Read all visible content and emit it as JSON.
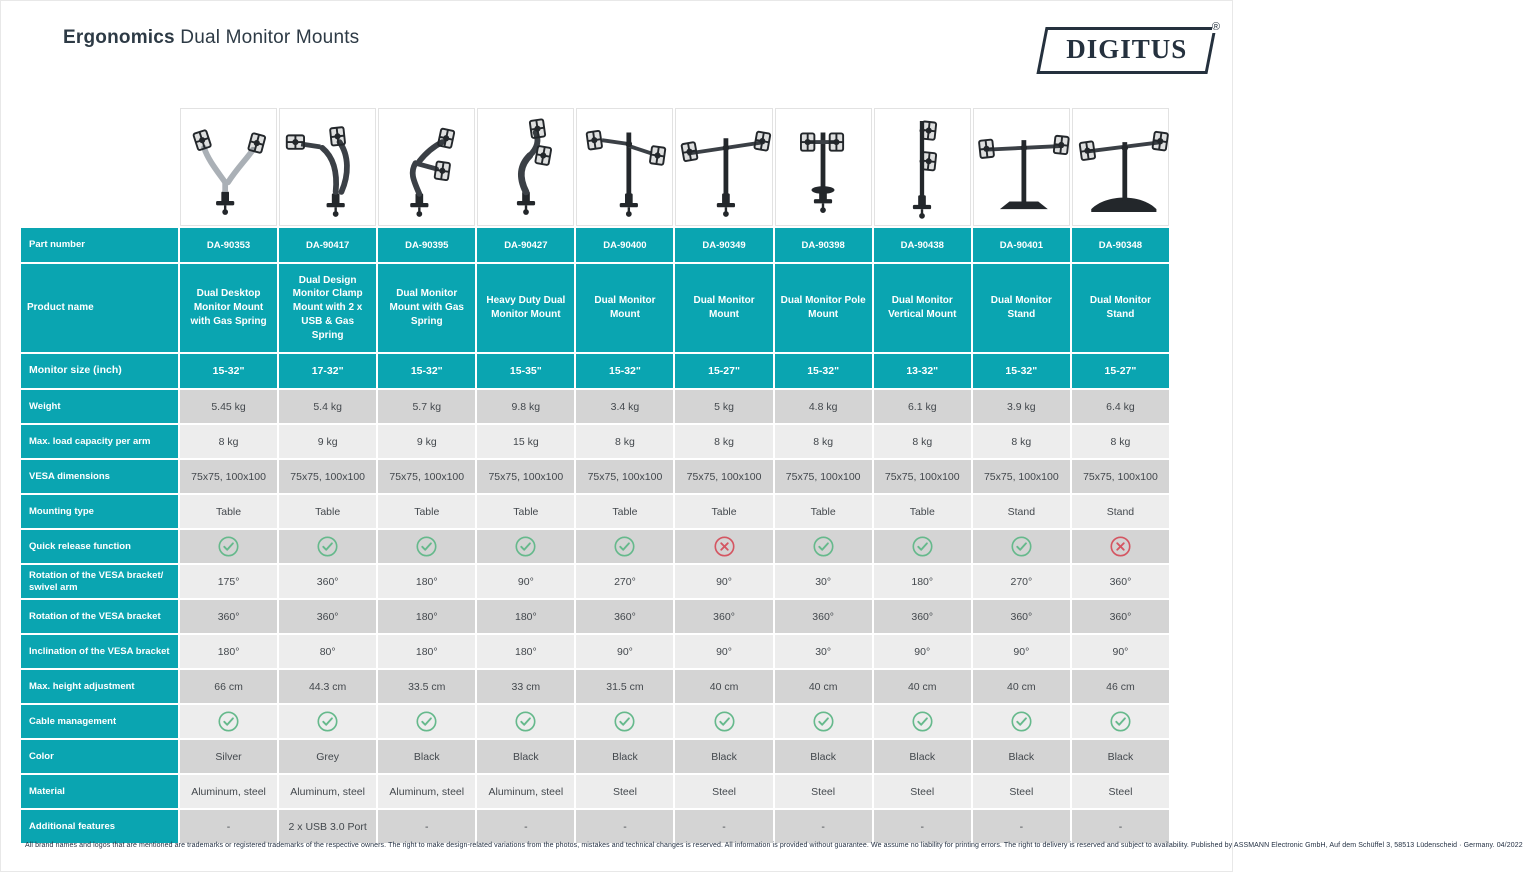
{
  "page": {
    "title_bold": "Ergonomics",
    "title_rest": " Dual Monitor Mounts",
    "brand": "DIGITUS",
    "brand_reg": "®",
    "footer": "All brand names and logos that are mentioned are trademarks or registered trademarks of the respective owners. The right to make design-related variations from the photos, mistakes and technical changes is reserved. All information is provided without guarantee. We assume no liability for printing errors. The right to delivery is reserved and subject to availability. Published by ASSMANN Electronic GmbH, Auf dem Schüffel 3, 58513 Lüdenscheid · Germany. 04/2022"
  },
  "colors": {
    "teal": "#0aa5b1",
    "row_dark": "#d4d4d4",
    "row_light": "#ededed",
    "check_green": "#66b98c",
    "cross_red": "#d45662",
    "ink": "#2d3a45"
  },
  "table": {
    "rows": [
      {
        "label": "Part number",
        "field": "part_number",
        "kind": "teal"
      },
      {
        "label": "Product name",
        "field": "product_name",
        "kind": "teal"
      },
      {
        "label": "Monitor size (inch)",
        "field": "monitor_size",
        "kind": "teal"
      },
      {
        "label": "Weight",
        "field": "weight",
        "kind": "text"
      },
      {
        "label": "Max. load capacity per arm",
        "field": "max_load",
        "kind": "text"
      },
      {
        "label": "VESA dimensions",
        "field": "vesa",
        "kind": "text"
      },
      {
        "label": "Mounting type",
        "field": "mounting",
        "kind": "text"
      },
      {
        "label": "Quick release function",
        "field": "quick_release",
        "kind": "icon"
      },
      {
        "label": "Rotation of the VESA bracket/ swivel arm",
        "field": "rotation_swivel",
        "kind": "text"
      },
      {
        "label": "Rotation of the VESA bracket",
        "field": "rotation_bracket",
        "kind": "text"
      },
      {
        "label": "Inclination of the VESA bracket",
        "field": "inclination",
        "kind": "text"
      },
      {
        "label": "Max. height adjustment",
        "field": "max_height",
        "kind": "text"
      },
      {
        "label": "Cable management",
        "field": "cable_management",
        "kind": "icon"
      },
      {
        "label": "Color",
        "field": "color",
        "kind": "text"
      },
      {
        "label": "Material",
        "field": "material",
        "kind": "text"
      },
      {
        "label": "Additional features",
        "field": "additional_features",
        "kind": "text"
      }
    ],
    "products": [
      {
        "image": "gas-arm-silver",
        "part_number": "DA-90353",
        "product_name": "Dual Desktop Monitor Mount with Gas Spring",
        "monitor_size": "15-32\"",
        "weight": "5.45 kg",
        "max_load": "8 kg",
        "vesa": "75x75, 100x100",
        "mounting": "Table",
        "quick_release": "yes",
        "rotation_swivel": "175°",
        "rotation_bracket": "360°",
        "inclination": "180°",
        "max_height": "66 cm",
        "cable_management": "yes",
        "color": "Silver",
        "material": "Aluminum, steel",
        "additional_features": "-"
      },
      {
        "image": "gas-arm-dark-wide",
        "part_number": "DA-90417",
        "product_name": "Dual Design Monitor Clamp Mount with 2 x USB & Gas Spring",
        "monitor_size": "17-32\"",
        "weight": "5.4 kg",
        "max_load": "9 kg",
        "vesa": "75x75, 100x100",
        "mounting": "Table",
        "quick_release": "yes",
        "rotation_swivel": "360°",
        "rotation_bracket": "360°",
        "inclination": "80°",
        "max_height": "44.3 cm",
        "cable_management": "yes",
        "color": "Grey",
        "material": "Aluminum, steel",
        "additional_features": "2 x USB 3.0 Port"
      },
      {
        "image": "gas-arm-dark-zigzag",
        "part_number": "DA-90395",
        "product_name": "Dual Monitor Mount with Gas Spring",
        "monitor_size": "15-32\"",
        "weight": "5.7 kg",
        "max_load": "9 kg",
        "vesa": "75x75, 100x100",
        "mounting": "Table",
        "quick_release": "yes",
        "rotation_swivel": "180°",
        "rotation_bracket": "180°",
        "inclination": "180°",
        "max_height": "33.5 cm",
        "cable_management": "yes",
        "color": "Black",
        "material": "Aluminum, steel",
        "additional_features": "-"
      },
      {
        "image": "gas-arm-dark-compact",
        "part_number": "DA-90427",
        "product_name": "Heavy Duty Dual Monitor Mount",
        "monitor_size": "15-35\"",
        "weight": "9.8 kg",
        "max_load": "15 kg",
        "vesa": "75x75, 100x100",
        "mounting": "Table",
        "quick_release": "yes",
        "rotation_swivel": "90°",
        "rotation_bracket": "180°",
        "inclination": "180°",
        "max_height": "33 cm",
        "cable_management": "yes",
        "color": "Black",
        "material": "Aluminum, steel",
        "additional_features": "-"
      },
      {
        "image": "t-pole-arms",
        "part_number": "DA-90400",
        "product_name": "Dual Monitor Mount",
        "monitor_size": "15-32\"",
        "weight": "3.4 kg",
        "max_load": "8 kg",
        "vesa": "75x75, 100x100",
        "mounting": "Table",
        "quick_release": "yes",
        "rotation_swivel": "270°",
        "rotation_bracket": "360°",
        "inclination": "90°",
        "max_height": "31.5 cm",
        "cable_management": "yes",
        "color": "Black",
        "material": "Steel",
        "additional_features": "-"
      },
      {
        "image": "crossbar-pole",
        "part_number": "DA-90349",
        "product_name": "Dual Monitor Mount",
        "monitor_size": "15-27\"",
        "weight": "5 kg",
        "max_load": "8 kg",
        "vesa": "75x75, 100x100",
        "mounting": "Table",
        "quick_release": "no",
        "rotation_swivel": "90°",
        "rotation_bracket": "360°",
        "inclination": "90°",
        "max_height": "40 cm",
        "cable_management": "yes",
        "color": "Black",
        "material": "Steel",
        "additional_features": "-"
      },
      {
        "image": "pole-duo-plates",
        "part_number": "DA-90398",
        "product_name": "Dual Monitor Pole Mount",
        "monitor_size": "15-32\"",
        "weight": "4.8 kg",
        "max_load": "8 kg",
        "vesa": "75x75, 100x100",
        "mounting": "Table",
        "quick_release": "yes",
        "rotation_swivel": "30°",
        "rotation_bracket": "360°",
        "inclination": "30°",
        "max_height": "40 cm",
        "cable_management": "yes",
        "color": "Black",
        "material": "Steel",
        "additional_features": "-"
      },
      {
        "image": "vertical-stack",
        "part_number": "DA-90438",
        "product_name": "Dual Monitor Vertical Mount",
        "monitor_size": "13-32\"",
        "weight": "6.1 kg",
        "max_load": "8 kg",
        "vesa": "75x75, 100x100",
        "mounting": "Table",
        "quick_release": "yes",
        "rotation_swivel": "180°",
        "rotation_bracket": "360°",
        "inclination": "90°",
        "max_height": "40 cm",
        "cable_management": "yes",
        "color": "Black",
        "material": "Steel",
        "additional_features": "-"
      },
      {
        "image": "stand-foot",
        "part_number": "DA-90401",
        "product_name": "Dual Monitor Stand",
        "monitor_size": "15-32\"",
        "weight": "3.9 kg",
        "max_load": "8 kg",
        "vesa": "75x75, 100x100",
        "mounting": "Stand",
        "quick_release": "yes",
        "rotation_swivel": "270°",
        "rotation_bracket": "360°",
        "inclination": "90°",
        "max_height": "40 cm",
        "cable_management": "yes",
        "color": "Black",
        "material": "Steel",
        "additional_features": "-"
      },
      {
        "image": "stand-curved-base",
        "part_number": "DA-90348",
        "product_name": "Dual Monitor Stand",
        "monitor_size": "15-27\"",
        "weight": "6.4 kg",
        "max_load": "8 kg",
        "vesa": "75x75, 100x100",
        "mounting": "Stand",
        "quick_release": "no",
        "rotation_swivel": "360°",
        "rotation_bracket": "360°",
        "inclination": "90°",
        "max_height": "46 cm",
        "cable_management": "yes",
        "color": "Black",
        "material": "Steel",
        "additional_features": "-"
      }
    ]
  }
}
